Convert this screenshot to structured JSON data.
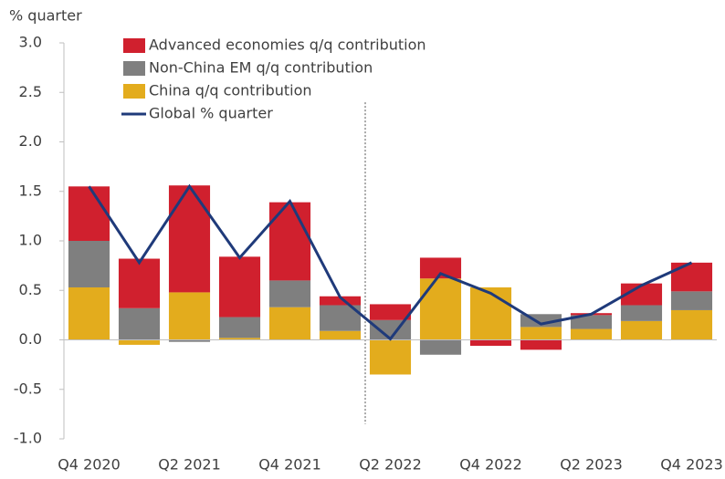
{
  "chart_data": {
    "type": "bar",
    "y_axis_label": "% quarter",
    "categories": [
      "Q4 2020",
      null,
      "Q2 2021",
      null,
      "Q4 2021",
      null,
      "Q2 2022",
      null,
      "Q4 2022",
      null,
      "Q2 2023",
      null,
      "Q4 2023"
    ],
    "series": [
      {
        "name": "China q/q contribution",
        "color": "#e3ac1d",
        "values": [
          0.53,
          -0.05,
          0.48,
          0.02,
          0.33,
          0.09,
          -0.35,
          0.62,
          0.53,
          0.13,
          0.11,
          0.19,
          0.3
        ]
      },
      {
        "name": "Non-China EM q/q contribution",
        "color": "#7f7f7f",
        "values": [
          0.47,
          0.32,
          -0.02,
          0.21,
          0.27,
          0.26,
          0.2,
          -0.15,
          0.0,
          0.13,
          0.14,
          0.16,
          0.19
        ]
      },
      {
        "name": "Advanced economies q/q contribution",
        "color": "#d0202e",
        "values": [
          0.55,
          0.5,
          1.08,
          0.61,
          0.79,
          0.09,
          0.16,
          0.21,
          -0.06,
          -0.1,
          0.02,
          0.22,
          0.29
        ]
      },
      {
        "name": "Global % quarter",
        "color": "#1f3a7a",
        "type": "line",
        "values": [
          1.55,
          0.78,
          1.55,
          0.83,
          1.4,
          0.43,
          0.01,
          0.67,
          0.47,
          0.16,
          0.26,
          0.55,
          0.78
        ]
      }
    ],
    "ylim": [
      -1.0,
      3.0
    ],
    "yticks": [
      {
        "value": -1.0,
        "label": "-1.0"
      },
      -0.5,
      {
        "value": 0.0,
        "label": "0.0"
      },
      0.5,
      {
        "value": 1.0,
        "label": "1.0"
      },
      1.5,
      {
        "value": 2.0,
        "label": "2.0"
      },
      2.5,
      {
        "value": 3.0,
        "label": "3.0"
      }
    ],
    "stacked": true,
    "legend": "top-left"
  }
}
